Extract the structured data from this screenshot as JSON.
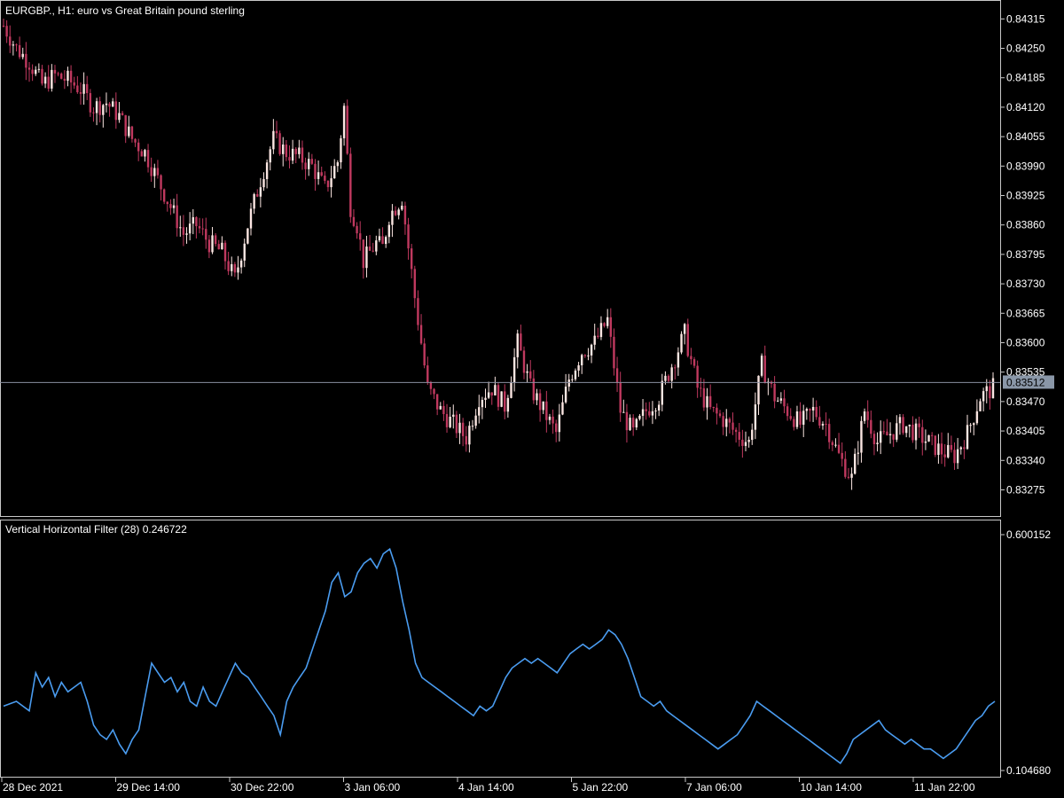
{
  "chart_data": [
    {
      "type": "candlestick",
      "title": "EURGBP., H1:  euro vs Great Britain pound sterling",
      "symbol": "EURGBP.",
      "timeframe": "H1",
      "ylim": [
        0.83225,
        0.84345
      ],
      "y_ticks": [
        "0.84315",
        "0.84250",
        "0.84185",
        "0.84120",
        "0.84055",
        "0.83990",
        "0.83925",
        "0.83860",
        "0.83795",
        "0.83730",
        "0.83665",
        "0.83600",
        "0.83535",
        "0.83470",
        "0.83405",
        "0.83340",
        "0.83275"
      ],
      "current_price": "0.83512",
      "close_points": [
        [
          0,
          0.843
        ],
        [
          4,
          0.8425
        ],
        [
          8,
          0.8422
        ],
        [
          12,
          0.8417
        ],
        [
          16,
          0.8419
        ],
        [
          20,
          0.8418
        ],
        [
          24,
          0.8416
        ],
        [
          28,
          0.8412
        ],
        [
          32,
          0.8413
        ],
        [
          36,
          0.841
        ],
        [
          40,
          0.8405
        ],
        [
          44,
          0.8402
        ],
        [
          48,
          0.8396
        ],
        [
          52,
          0.839
        ],
        [
          56,
          0.8384
        ],
        [
          60,
          0.8386
        ],
        [
          64,
          0.8382
        ],
        [
          68,
          0.838
        ],
        [
          72,
          0.8374
        ],
        [
          76,
          0.8386
        ],
        [
          80,
          0.8396
        ],
        [
          84,
          0.8405
        ],
        [
          88,
          0.8402
        ],
        [
          92,
          0.8401
        ],
        [
          96,
          0.8399
        ],
        [
          100,
          0.8394
        ],
        [
          104,
          0.84
        ],
        [
          106,
          0.8412
        ],
        [
          108,
          0.839
        ],
        [
          110,
          0.8386
        ],
        [
          112,
          0.8378
        ],
        [
          114,
          0.838
        ],
        [
          116,
          0.8382
        ],
        [
          118,
          0.8381
        ],
        [
          120,
          0.8388
        ],
        [
          124,
          0.8392
        ],
        [
          128,
          0.837
        ],
        [
          132,
          0.835
        ],
        [
          136,
          0.8345
        ],
        [
          140,
          0.8342
        ],
        [
          144,
          0.8339
        ],
        [
          148,
          0.8348
        ],
        [
          152,
          0.835
        ],
        [
          156,
          0.8346
        ],
        [
          160,
          0.836
        ],
        [
          164,
          0.835
        ],
        [
          168,
          0.8345
        ],
        [
          172,
          0.834
        ],
        [
          176,
          0.8352
        ],
        [
          180,
          0.8358
        ],
        [
          184,
          0.836
        ],
        [
          188,
          0.8365
        ],
        [
          192,
          0.8345
        ],
        [
          196,
          0.834
        ],
        [
          200,
          0.8345
        ],
        [
          204,
          0.8348
        ],
        [
          208,
          0.8355
        ],
        [
          212,
          0.8362
        ],
        [
          216,
          0.835
        ],
        [
          220,
          0.8345
        ],
        [
          224,
          0.8343
        ],
        [
          228,
          0.834
        ],
        [
          232,
          0.8338
        ],
        [
          236,
          0.8355
        ],
        [
          240,
          0.8348
        ],
        [
          244,
          0.8345
        ],
        [
          248,
          0.8342
        ],
        [
          252,
          0.8345
        ],
        [
          256,
          0.8342
        ],
        [
          260,
          0.8335
        ],
        [
          264,
          0.833
        ],
        [
          268,
          0.8345
        ],
        [
          272,
          0.8338
        ],
        [
          276,
          0.834
        ],
        [
          280,
          0.8342
        ],
        [
          284,
          0.834
        ],
        [
          288,
          0.8338
        ],
        [
          292,
          0.8336
        ],
        [
          296,
          0.8335
        ],
        [
          300,
          0.834
        ],
        [
          304,
          0.8348
        ],
        [
          308,
          0.835
        ]
      ]
    },
    {
      "type": "line",
      "title": "Vertical Horizontal Filter (28) 0.246722",
      "indicator": "Vertical Horizontal Filter",
      "period": "28",
      "value": "0.246722",
      "color": "#4a9cf0",
      "ylim": [
        0.10468,
        0.600152
      ],
      "y_ticks": [
        "0.600152",
        "0.104680"
      ],
      "series": [
        {
          "values": [
            [
              0,
              0.24
            ],
            [
              4,
              0.25
            ],
            [
              8,
              0.23
            ],
            [
              10,
              0.31
            ],
            [
              12,
              0.28
            ],
            [
              14,
              0.3
            ],
            [
              16,
              0.26
            ],
            [
              18,
              0.29
            ],
            [
              20,
              0.27
            ],
            [
              22,
              0.28
            ],
            [
              24,
              0.29
            ],
            [
              26,
              0.25
            ],
            [
              28,
              0.2
            ],
            [
              30,
              0.18
            ],
            [
              32,
              0.17
            ],
            [
              34,
              0.19
            ],
            [
              36,
              0.16
            ],
            [
              38,
              0.14
            ],
            [
              40,
              0.17
            ],
            [
              42,
              0.19
            ],
            [
              44,
              0.26
            ],
            [
              46,
              0.33
            ],
            [
              48,
              0.31
            ],
            [
              50,
              0.29
            ],
            [
              52,
              0.3
            ],
            [
              54,
              0.27
            ],
            [
              56,
              0.29
            ],
            [
              58,
              0.25
            ],
            [
              60,
              0.24
            ],
            [
              62,
              0.28
            ],
            [
              64,
              0.25
            ],
            [
              66,
              0.24
            ],
            [
              68,
              0.27
            ],
            [
              70,
              0.3
            ],
            [
              72,
              0.33
            ],
            [
              74,
              0.31
            ],
            [
              76,
              0.3
            ],
            [
              78,
              0.28
            ],
            [
              80,
              0.26
            ],
            [
              82,
              0.24
            ],
            [
              84,
              0.22
            ],
            [
              86,
              0.18
            ],
            [
              88,
              0.25
            ],
            [
              90,
              0.28
            ],
            [
              92,
              0.3
            ],
            [
              94,
              0.32
            ],
            [
              96,
              0.36
            ],
            [
              98,
              0.4
            ],
            [
              100,
              0.44
            ],
            [
              102,
              0.5
            ],
            [
              104,
              0.52
            ],
            [
              106,
              0.47
            ],
            [
              108,
              0.48
            ],
            [
              110,
              0.52
            ],
            [
              112,
              0.54
            ],
            [
              114,
              0.55
            ],
            [
              116,
              0.53
            ],
            [
              118,
              0.56
            ],
            [
              120,
              0.57
            ],
            [
              122,
              0.53
            ],
            [
              124,
              0.46
            ],
            [
              126,
              0.4
            ],
            [
              128,
              0.33
            ],
            [
              130,
              0.3
            ],
            [
              132,
              0.29
            ],
            [
              134,
              0.28
            ],
            [
              136,
              0.27
            ],
            [
              138,
              0.26
            ],
            [
              140,
              0.25
            ],
            [
              142,
              0.24
            ],
            [
              144,
              0.23
            ],
            [
              146,
              0.22
            ],
            [
              148,
              0.24
            ],
            [
              150,
              0.23
            ],
            [
              152,
              0.24
            ],
            [
              154,
              0.27
            ],
            [
              156,
              0.3
            ],
            [
              158,
              0.32
            ],
            [
              160,
              0.33
            ],
            [
              162,
              0.34
            ],
            [
              164,
              0.33
            ],
            [
              166,
              0.34
            ],
            [
              168,
              0.33
            ],
            [
              170,
              0.32
            ],
            [
              172,
              0.31
            ],
            [
              174,
              0.33
            ],
            [
              176,
              0.35
            ],
            [
              178,
              0.36
            ],
            [
              180,
              0.37
            ],
            [
              182,
              0.36
            ],
            [
              184,
              0.37
            ],
            [
              186,
              0.38
            ],
            [
              188,
              0.4
            ],
            [
              190,
              0.39
            ],
            [
              192,
              0.37
            ],
            [
              194,
              0.34
            ],
            [
              196,
              0.3
            ],
            [
              198,
              0.26
            ],
            [
              200,
              0.25
            ],
            [
              202,
              0.24
            ],
            [
              204,
              0.25
            ],
            [
              206,
              0.23
            ],
            [
              208,
              0.22
            ],
            [
              210,
              0.21
            ],
            [
              212,
              0.2
            ],
            [
              214,
              0.19
            ],
            [
              216,
              0.18
            ],
            [
              218,
              0.17
            ],
            [
              220,
              0.16
            ],
            [
              222,
              0.15
            ],
            [
              224,
              0.16
            ],
            [
              226,
              0.17
            ],
            [
              228,
              0.18
            ],
            [
              230,
              0.2
            ],
            [
              232,
              0.22
            ],
            [
              234,
              0.25
            ],
            [
              236,
              0.24
            ],
            [
              238,
              0.23
            ],
            [
              240,
              0.22
            ],
            [
              242,
              0.21
            ],
            [
              244,
              0.2
            ],
            [
              246,
              0.19
            ],
            [
              248,
              0.18
            ],
            [
              250,
              0.17
            ],
            [
              252,
              0.16
            ],
            [
              254,
              0.15
            ],
            [
              256,
              0.14
            ],
            [
              258,
              0.13
            ],
            [
              260,
              0.12
            ],
            [
              262,
              0.14
            ],
            [
              264,
              0.17
            ],
            [
              266,
              0.18
            ],
            [
              268,
              0.19
            ],
            [
              270,
              0.2
            ],
            [
              272,
              0.21
            ],
            [
              274,
              0.19
            ],
            [
              276,
              0.18
            ],
            [
              278,
              0.17
            ],
            [
              280,
              0.16
            ],
            [
              282,
              0.17
            ],
            [
              284,
              0.16
            ],
            [
              286,
              0.15
            ],
            [
              288,
              0.15
            ],
            [
              290,
              0.14
            ],
            [
              292,
              0.13
            ],
            [
              294,
              0.14
            ],
            [
              296,
              0.15
            ],
            [
              298,
              0.17
            ],
            [
              300,
              0.19
            ],
            [
              302,
              0.21
            ],
            [
              304,
              0.22
            ],
            [
              306,
              0.24
            ],
            [
              308,
              0.25
            ]
          ]
        }
      ]
    }
  ],
  "x_axis_labels": [
    "28 Dec 2021",
    "29 Dec 14:00",
    "30 Dec 22:00",
    "3 Jan 06:00",
    "4 Jan 14:00",
    "5 Jan 22:00",
    "7 Jan 06:00",
    "10 Jan 14:00",
    "11 Jan 22:00"
  ],
  "colors": {
    "background": "#000000",
    "bull": "#fbe6e2",
    "bear": "#c0395f",
    "indicator": "#4a9cf0",
    "axis": "#c8c8c8",
    "price_line": "#8a8fa0",
    "price_box": "#8a97a8"
  }
}
